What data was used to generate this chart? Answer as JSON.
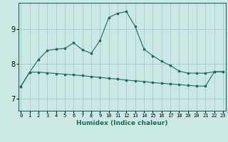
{
  "xlabel": "Humidex (Indice chaleur)",
  "ylabel": "",
  "background_color": "#cce8e5",
  "grid_color": "#aacfcc",
  "line_color": "#1a6b5a",
  "x_ticks": [
    0,
    1,
    2,
    3,
    4,
    5,
    6,
    7,
    8,
    9,
    10,
    11,
    12,
    13,
    14,
    15,
    16,
    17,
    18,
    19,
    20,
    21,
    22,
    23
  ],
  "y_ticks": [
    7,
    8,
    9
  ],
  "xlim": [
    -0.3,
    23.3
  ],
  "ylim": [
    6.65,
    9.75
  ],
  "series1_x": [
    0,
    1,
    2,
    3,
    4,
    5,
    6,
    7,
    8,
    9,
    10,
    11,
    12,
    13,
    14,
    15,
    16,
    17,
    18,
    19,
    20,
    21,
    22,
    23
  ],
  "series1_y": [
    7.35,
    7.76,
    7.76,
    7.74,
    7.72,
    7.7,
    7.68,
    7.66,
    7.63,
    7.61,
    7.58,
    7.56,
    7.53,
    7.51,
    7.49,
    7.46,
    7.44,
    7.42,
    7.4,
    7.38,
    7.36,
    7.36,
    7.77,
    7.77
  ],
  "series2_x": [
    0,
    1,
    2,
    3,
    4,
    5,
    6,
    7,
    8,
    9,
    10,
    11,
    12,
    13,
    14,
    15,
    16,
    17,
    18,
    19,
    20,
    21,
    22,
    23
  ],
  "series2_y": [
    7.35,
    7.76,
    8.12,
    8.38,
    8.42,
    8.44,
    8.6,
    8.4,
    8.3,
    8.67,
    9.33,
    9.45,
    9.5,
    9.07,
    8.42,
    8.23,
    8.07,
    7.95,
    7.79,
    7.73,
    7.73,
    7.73,
    7.77,
    7.77
  ]
}
